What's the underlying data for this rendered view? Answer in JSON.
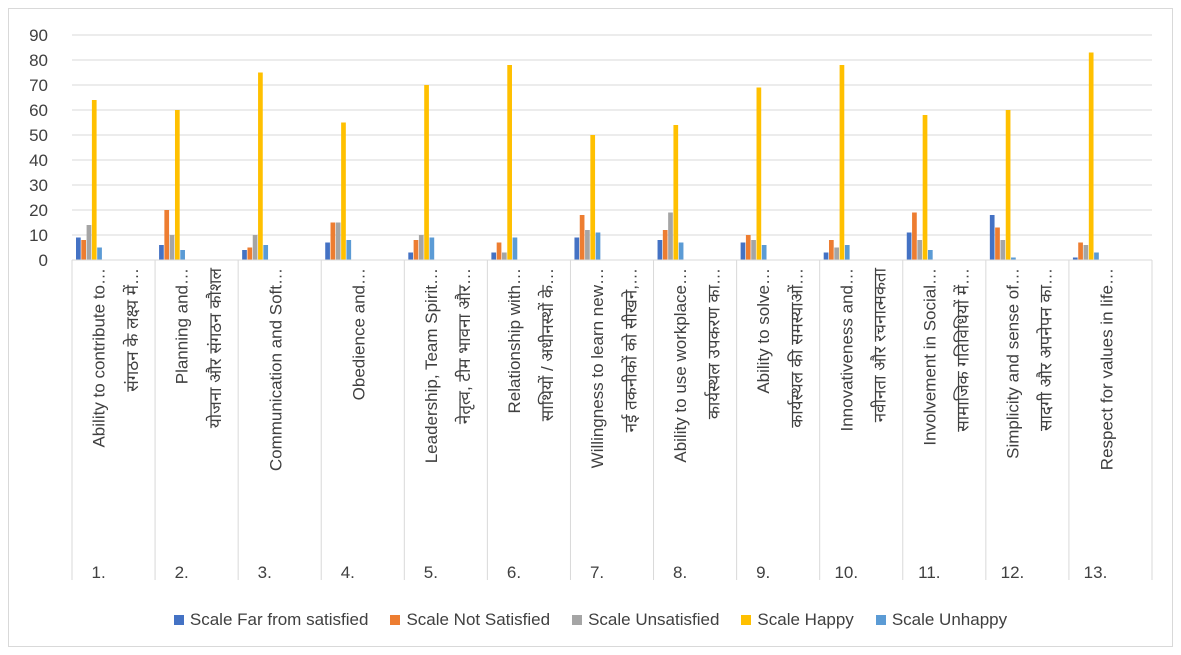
{
  "chart_data": {
    "type": "bar",
    "ylim": [
      0,
      90
    ],
    "yticks": [
      0,
      10,
      20,
      30,
      40,
      50,
      60,
      70,
      80,
      90
    ],
    "grid": true,
    "legend_position": "bottom",
    "categories": [
      {
        "num": "1.",
        "labels": [
          "Ability to contribute to…",
          "संगठन के लक्ष्य में…"
        ]
      },
      {
        "num": "2.",
        "labels": [
          "Planning and…",
          "योजना और संगठन कौशल"
        ]
      },
      {
        "num": "3.",
        "labels": [
          "Communication and Soft…"
        ]
      },
      {
        "num": "4.",
        "labels": [
          "Obedience and…"
        ]
      },
      {
        "num": "5.",
        "labels": [
          "Leadership, Team Spirit…",
          "नेतृत्व, टीम भावना और…"
        ]
      },
      {
        "num": "6.",
        "labels": [
          "Relationship with…",
          "साथियों / अधीनस्थों के…"
        ]
      },
      {
        "num": "7.",
        "labels": [
          "Willingness to learn new…",
          "नई तकनीकों को सीखने,…"
        ]
      },
      {
        "num": "8.",
        "labels": [
          "Ability to use workplace…",
          "कार्यस्थल उपकरण का…"
        ]
      },
      {
        "num": "9.",
        "labels": [
          "Ability to solve…",
          "कार्यस्थल की समस्याओं…"
        ]
      },
      {
        "num": "10.",
        "labels": [
          "Innovativeness and…",
          "नवीनता और रचनात्मकता"
        ]
      },
      {
        "num": "11.",
        "labels": [
          "Involvement in Social…",
          "सामाजिक गतिविधियों में…"
        ]
      },
      {
        "num": "12.",
        "labels": [
          "Simplicity and sense of…",
          "सादगी और अपनेपन का…"
        ]
      },
      {
        "num": "13.",
        "labels": [
          "Respect for values in life…"
        ]
      }
    ],
    "series": [
      {
        "name": "Scale Far from satisfied",
        "color": "#4472C4",
        "values": [
          9,
          6,
          4,
          7,
          3,
          3,
          9,
          8,
          7,
          3,
          11,
          18,
          1
        ]
      },
      {
        "name": "Scale Not Satisfied",
        "color": "#ED7D31",
        "values": [
          8,
          20,
          5,
          15,
          8,
          7,
          18,
          12,
          10,
          8,
          19,
          13,
          7
        ]
      },
      {
        "name": "Scale Unsatisfied",
        "color": "#A5A5A5",
        "values": [
          14,
          10,
          10,
          15,
          10,
          3,
          12,
          19,
          8,
          5,
          8,
          8,
          6
        ]
      },
      {
        "name": "Scale Happy",
        "color": "#FFC000",
        "values": [
          64,
          60,
          75,
          55,
          70,
          78,
          50,
          54,
          69,
          78,
          58,
          60,
          83
        ]
      },
      {
        "name": "Scale Unhappy",
        "color": "#5B9BD5",
        "values": [
          5,
          4,
          6,
          8,
          9,
          9,
          11,
          7,
          6,
          6,
          4,
          1,
          3
        ]
      }
    ]
  }
}
